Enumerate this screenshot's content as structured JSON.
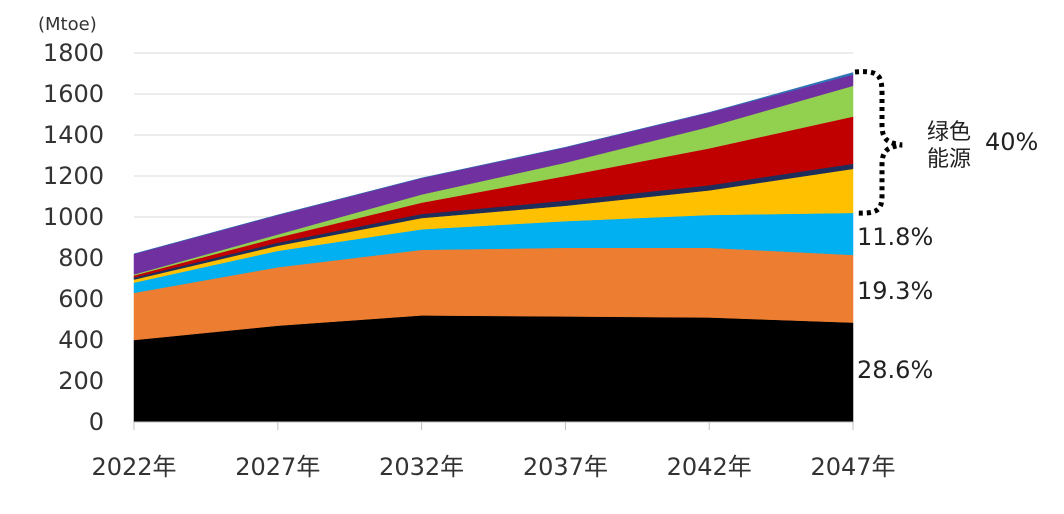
{
  "chart_data": {
    "type": "area",
    "stacked": true,
    "unit_label": "(Mtoe)",
    "x": [
      "2022年",
      "2027年",
      "2032年",
      "2037年",
      "2042年",
      "2047年"
    ],
    "ylim": [
      0,
      1800
    ],
    "yticks": [
      0,
      200,
      400,
      600,
      800,
      1000,
      1200,
      1400,
      1600,
      1800
    ],
    "grid": true,
    "series": [
      {
        "color": "#000000",
        "values": [
          400,
          470,
          520,
          515,
          510,
          485
        ]
      },
      {
        "color": "#ED7D31",
        "values": [
          230,
          285,
          320,
          335,
          340,
          330
        ]
      },
      {
        "color": "#00B0F0",
        "values": [
          50,
          80,
          100,
          130,
          160,
          205
        ]
      },
      {
        "color": "#FFC000",
        "values": [
          15,
          25,
          55,
          75,
          120,
          215
        ]
      },
      {
        "color": "#1F2D5A",
        "values": [
          10,
          15,
          20,
          25,
          25,
          25
        ]
      },
      {
        "color": "#C00000",
        "values": [
          10,
          25,
          55,
          120,
          180,
          230
        ]
      },
      {
        "color": "#92D050",
        "values": [
          5,
          15,
          40,
          65,
          105,
          150
        ]
      },
      {
        "color": "#7030A0",
        "values": [
          100,
          95,
          80,
          75,
          70,
          55
        ]
      },
      {
        "color": "#2E75B6",
        "values": [
          0,
          0,
          0,
          0,
          0,
          10
        ]
      }
    ],
    "annotations": {
      "share_black": "28.6%",
      "share_orange": "19.3%",
      "share_blue": "11.8%",
      "green_label_line1": "绿色",
      "green_label_line2": "能源",
      "green_share": "40%"
    }
  }
}
